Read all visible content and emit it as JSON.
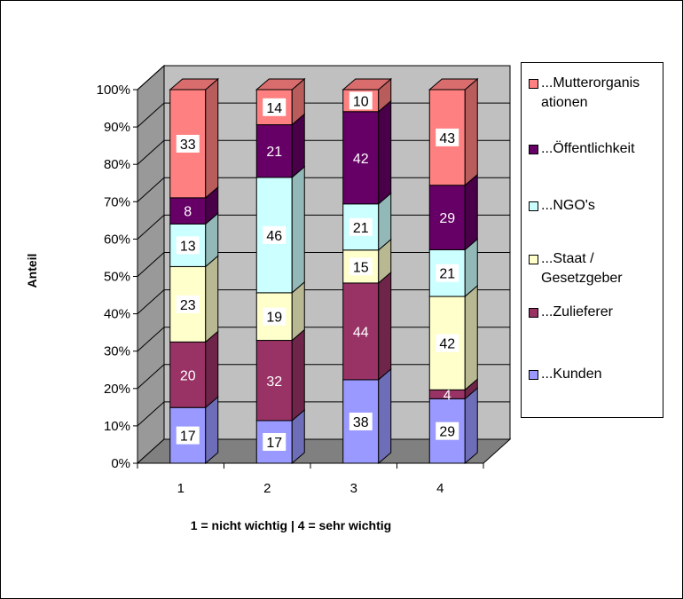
{
  "chart_data": {
    "type": "bar",
    "stacked": "percent",
    "three_d": true,
    "categories": [
      "1",
      "2",
      "3",
      "4"
    ],
    "xlabel": "1 = nicht wichtig | 4  = sehr wichtig",
    "ylabel": "Anteil",
    "ylim": [
      0,
      100
    ],
    "yticks": [
      "0%",
      "10%",
      "20%",
      "30%",
      "40%",
      "50%",
      "60%",
      "70%",
      "80%",
      "90%",
      "100%"
    ],
    "grid": true,
    "legend_position": "right",
    "series": [
      {
        "name": "...Kunden",
        "color": "#9999ff",
        "values": [
          17,
          17,
          38,
          29
        ]
      },
      {
        "name": "...Zulieferer",
        "color": "#993366",
        "values": [
          20,
          32,
          44,
          4
        ]
      },
      {
        "name": "...Staat / Gesetzgeber",
        "color": "#ffffcc",
        "values": [
          23,
          19,
          15,
          42
        ]
      },
      {
        "name": "...NGO's",
        "color": "#ccffff",
        "values": [
          13,
          46,
          21,
          21
        ]
      },
      {
        "name": "...Öffentlichkeit",
        "color": "#660066",
        "values": [
          8,
          21,
          42,
          29
        ]
      },
      {
        "name": "...Mutterorganisationen",
        "color": "#ff8080",
        "values": [
          33,
          14,
          10,
          43
        ]
      }
    ],
    "legend": [
      {
        "text": "...Mutterorganis ationen",
        "color": "#ff8080"
      },
      {
        "text": "...Öffentlichkeit",
        "color": "#660066"
      },
      {
        "text": "...NGO's",
        "color": "#ccffff"
      },
      {
        "text": "...Staat / Gesetzgeber",
        "color": "#ffffcc"
      },
      {
        "text": "...Zulieferer",
        "color": "#993366"
      },
      {
        "text": "...Kunden",
        "color": "#9999ff"
      }
    ]
  }
}
